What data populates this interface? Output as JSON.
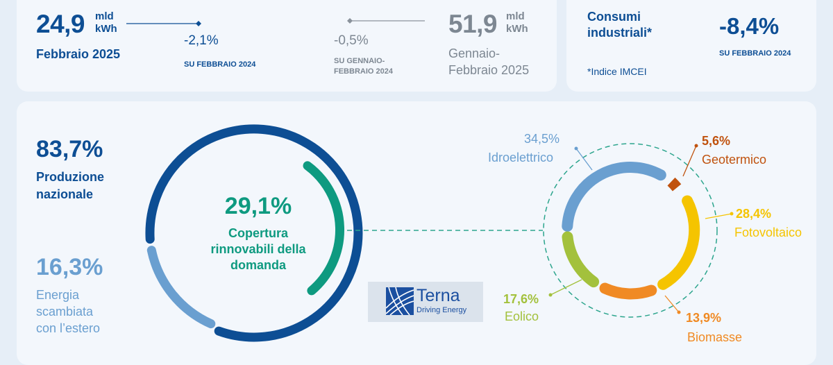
{
  "stats": {
    "feb": {
      "value": "24,9",
      "unit_top": "mld",
      "unit_bottom": "kWh",
      "period": "Febbraio 2025",
      "change": "-2,1%",
      "compare": "SU FEBBRAIO 2024"
    },
    "ytd": {
      "value": "51,9",
      "unit_top": "mld",
      "unit_bottom": "kWh",
      "period_line1": "Gennaio-",
      "period_line2": "Febbraio 2025",
      "change": "-0,5%",
      "compare_line1": "SU GENNAIO-",
      "compare_line2": "FEBBRAIO 2024"
    },
    "industrial": {
      "title_line1": "Consumi",
      "title_line2": "industriali*",
      "change": "-8,4%",
      "compare": "SU FEBBRAIO 2024",
      "note": "*Indice IMCEI"
    }
  },
  "production": {
    "national": {
      "value": "83,7%",
      "line1": "Produzione",
      "line2": "nazionale"
    },
    "exchange": {
      "value": "16,3%",
      "line1": "Energia",
      "line2": "scambiata",
      "line3": "con l’estero"
    }
  },
  "renewables": {
    "value": "29,1%",
    "line1": "Copertura",
    "line2": "rinnovabili della",
    "line3": "domanda"
  },
  "sources": [
    {
      "name": "Idroelettrico",
      "value": "34,5%",
      "color": "#6a9fd0",
      "share": 34.5
    },
    {
      "name": "Geotermico",
      "value": "5,6%",
      "color": "#c0520e",
      "share": 5.6
    },
    {
      "name": "Fotovoltaico",
      "value": "28,4%",
      "color": "#f5c400",
      "share": 28.4
    },
    {
      "name": "Biomasse",
      "value": "13,9%",
      "color": "#f08a24",
      "share": 13.9
    },
    {
      "name": "Eolico",
      "value": "17,6%",
      "color": "#a3c13c",
      "share": 17.6
    }
  ],
  "colors": {
    "navy": "#0d4e94",
    "light_blue": "#6a9fd0",
    "teal": "#0e9a80"
  },
  "logo": {
    "name": "Terna",
    "tagline": "Driving Energy"
  }
}
